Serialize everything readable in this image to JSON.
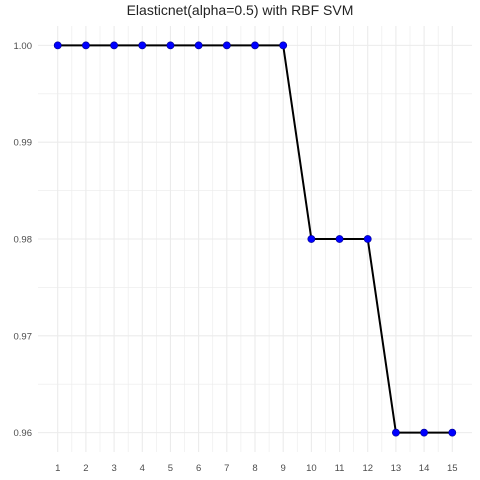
{
  "chart_data": {
    "type": "line",
    "title": "Elasticnet(alpha=0.5) with RBF SVM",
    "xlabel": "",
    "ylabel": "",
    "x": [
      1,
      2,
      3,
      4,
      5,
      6,
      7,
      8,
      9,
      10,
      11,
      12,
      13,
      14,
      15
    ],
    "series": [
      {
        "values": [
          1.0,
          1.0,
          1.0,
          1.0,
          1.0,
          1.0,
          1.0,
          1.0,
          1.0,
          0.98,
          0.98,
          0.98,
          0.96,
          0.96,
          0.96
        ]
      }
    ],
    "xlim": [
      0.3,
      15.7
    ],
    "ylim": [
      0.958,
      1.002
    ],
    "x_ticks": [
      "1",
      "2",
      "3",
      "4",
      "5",
      "6",
      "7",
      "8",
      "9",
      "10",
      "11",
      "12",
      "13",
      "14",
      "15"
    ],
    "y_ticks": [
      "0.96",
      "0.97",
      "0.98",
      "0.99",
      "1.00"
    ],
    "grid": true,
    "colors": {
      "line": "#000000",
      "point": "#0000ff",
      "grid": "#ebebeb",
      "background": "#ffffff"
    }
  }
}
